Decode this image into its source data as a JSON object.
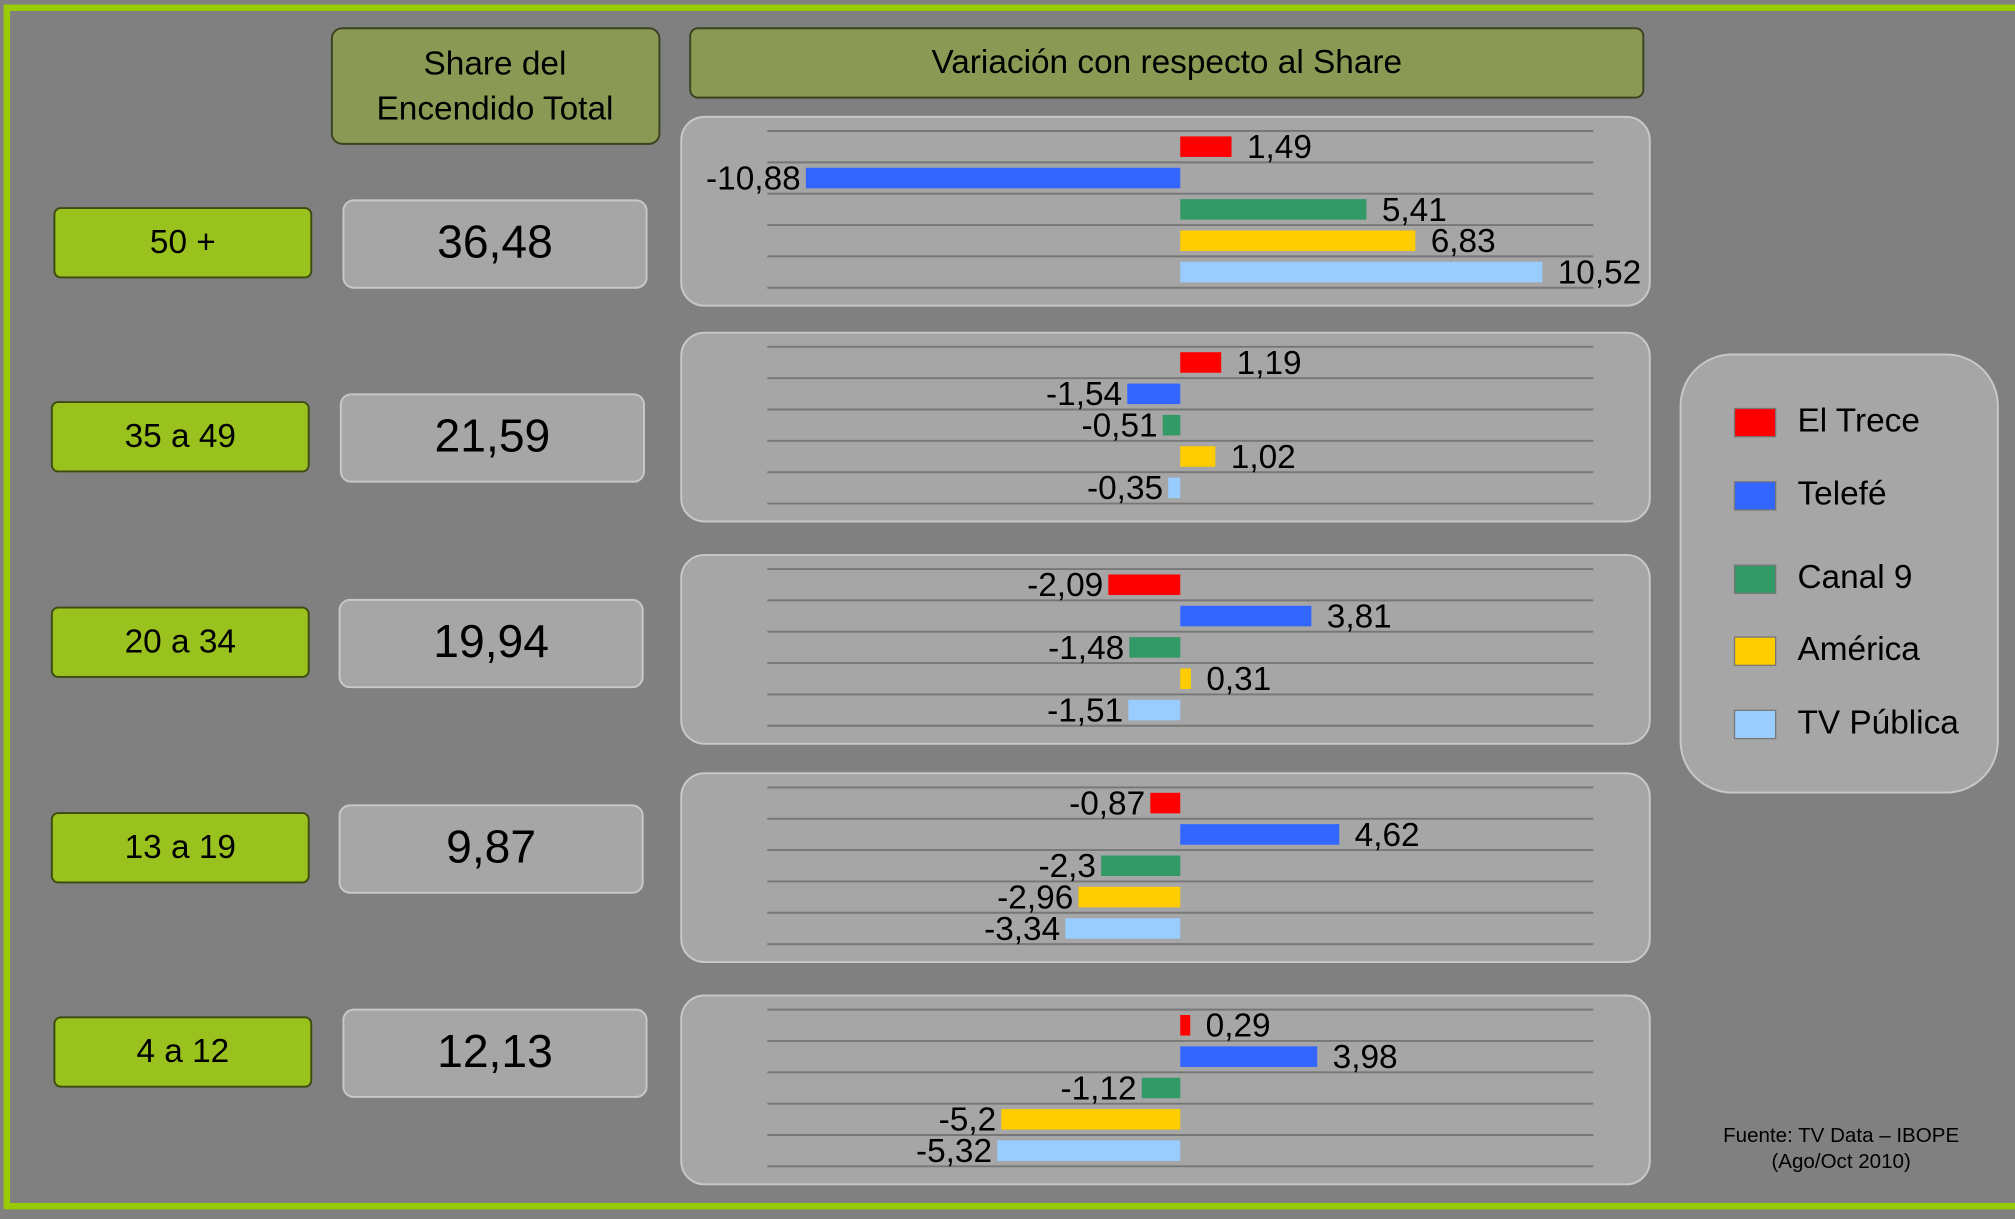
{
  "headers": {
    "share": [
      "Share del",
      "Encendido Total"
    ],
    "variation": "Variación con respecto al Share"
  },
  "rows": [
    {
      "age": "50 +",
      "share": "36,48"
    },
    {
      "age": "35 a 49",
      "share": "21,59"
    },
    {
      "age": "20 a 34",
      "share": "19,94"
    },
    {
      "age": "13 a 19",
      "share": "9,87"
    },
    {
      "age": "4 a 12",
      "share": "12,13"
    }
  ],
  "legend": [
    {
      "name": "El Trece",
      "color": "#ff0000"
    },
    {
      "name": "Telefé",
      "color": "#3366ff"
    },
    {
      "name": "Canal 9",
      "color": "#339966"
    },
    {
      "name": "América",
      "color": "#ffcc00"
    },
    {
      "name": "TV Pública",
      "color": "#99ccff"
    }
  ],
  "chart_data": [
    {
      "type": "bar",
      "orientation": "horizontal",
      "xlim": [
        -12,
        12
      ],
      "grid": true,
      "values": [
        1.49,
        -10.88,
        5.41,
        6.83,
        10.52
      ],
      "value_labels": [
        "1,49",
        "-10,88",
        "5,41",
        "6,83",
        "10,52"
      ]
    },
    {
      "type": "bar",
      "orientation": "horizontal",
      "xlim": [
        -12,
        12
      ],
      "grid": true,
      "values": [
        1.19,
        -1.54,
        -0.51,
        1.02,
        -0.35
      ],
      "value_labels": [
        "1,19",
        "-1,54",
        "-0,51",
        "1,02",
        "-0,35"
      ]
    },
    {
      "type": "bar",
      "orientation": "horizontal",
      "xlim": [
        -12,
        12
      ],
      "grid": true,
      "values": [
        -2.09,
        3.81,
        -1.48,
        0.31,
        -1.51
      ],
      "value_labels": [
        "-2,09",
        "3,81",
        "-1,48",
        "0,31",
        "-1,51"
      ]
    },
    {
      "type": "bar",
      "orientation": "horizontal",
      "xlim": [
        -12,
        12
      ],
      "grid": true,
      "values": [
        -0.87,
        4.62,
        -2.3,
        -2.96,
        -3.34
      ],
      "value_labels": [
        "-0,87",
        "4,62",
        "-2,3",
        "-2,96",
        "-3,34"
      ]
    },
    {
      "type": "bar",
      "orientation": "horizontal",
      "xlim": [
        -12,
        12
      ],
      "grid": true,
      "values": [
        0.29,
        3.98,
        -1.12,
        -5.2,
        -5.32
      ],
      "value_labels": [
        "0,29",
        "3,98",
        "-1,12",
        "-5,2",
        "-5,32"
      ]
    }
  ],
  "source": [
    "Fuente: TV Data – IBOPE",
    "(Ago/Oct 2010)"
  ]
}
